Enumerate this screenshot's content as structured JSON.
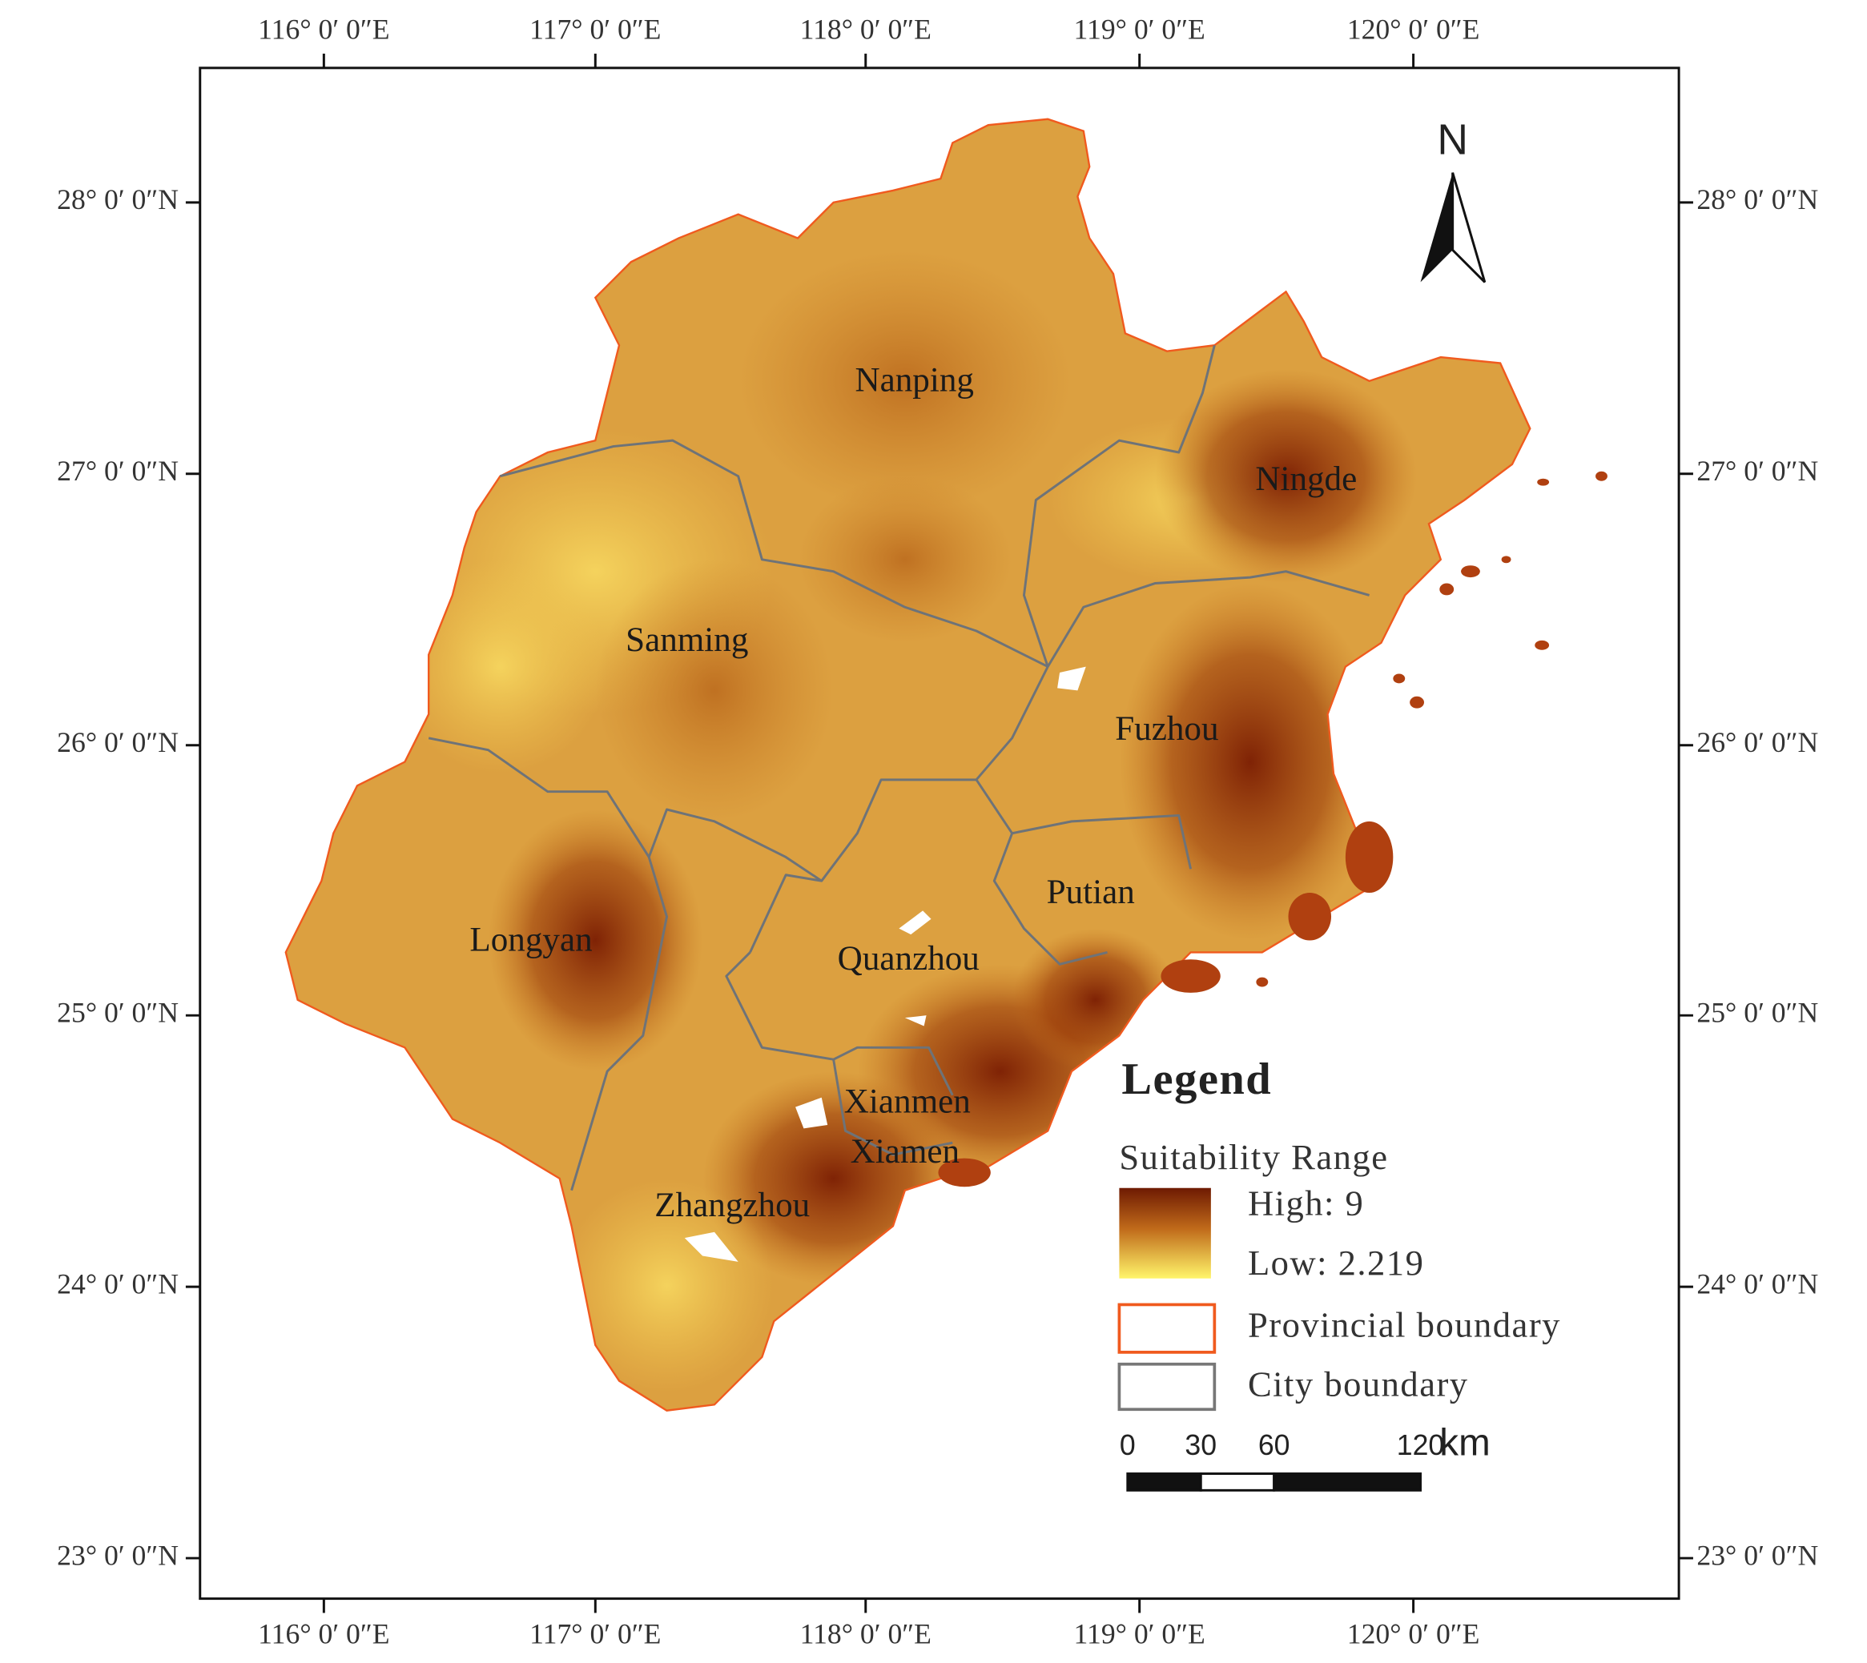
{
  "longitude_labels": [
    "116° 0′ 0″E",
    "117° 0′ 0″E",
    "118° 0′ 0″E",
    "119° 0′ 0″E",
    "120° 0′ 0″E"
  ],
  "latitude_labels": [
    "28° 0′ 0″N",
    "27° 0′ 0″N",
    "26° 0′ 0″N",
    "25° 0′ 0″N",
    "24° 0′ 0″N",
    "23° 0′ 0″N"
  ],
  "north_label": "N",
  "cities": [
    "Nanping",
    "Sanming",
    "Ningde",
    "Fuzhou",
    "Putian",
    "Longyan",
    "Quanzhou",
    "Xianmen",
    "Xiamen",
    "Zhangzhou"
  ],
  "legend": {
    "title": "Legend",
    "gradient_title": "Suitability Range",
    "high": "High: 9",
    "low": "Low: 2.219",
    "items": [
      "Provincial boundary",
      "City boundary"
    ]
  },
  "scale_bar": {
    "ticks": [
      0,
      30,
      60,
      120
    ],
    "unit": "km"
  }
}
